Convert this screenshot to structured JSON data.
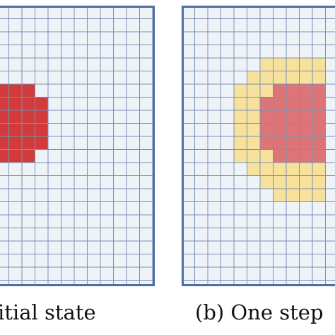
{
  "panels": [
    {
      "id": "a",
      "caption": "itial state",
      "colors": {
        "background": "#eef3f8",
        "grid": "#7a8fb4",
        "border": "#4d6fa3",
        "infected": "#d33a3a"
      },
      "layers": [
        {
          "name": "infected",
          "color": "#d33a3a",
          "cells": [
            [
              0,
              6
            ],
            [
              1,
              6
            ],
            [
              2,
              6
            ],
            [
              0,
              7
            ],
            [
              1,
              7
            ],
            [
              2,
              7
            ],
            [
              3,
              7
            ],
            [
              0,
              8
            ],
            [
              1,
              8
            ],
            [
              2,
              8
            ],
            [
              3,
              8
            ],
            [
              0,
              9
            ],
            [
              1,
              9
            ],
            [
              2,
              9
            ],
            [
              3,
              9
            ],
            [
              0,
              10
            ],
            [
              1,
              10
            ],
            [
              2,
              10
            ],
            [
              3,
              10
            ],
            [
              0,
              11
            ],
            [
              1,
              11
            ],
            [
              2,
              11
            ]
          ]
        }
      ]
    },
    {
      "id": "b",
      "caption": "(b) One step",
      "colors": {
        "background": "#eef3f8",
        "grid": "#7a8fb4",
        "border": "#4d6fa3"
      },
      "layers": [
        {
          "name": "spread",
          "color": "#f8e29b",
          "cells": [
            [
              6,
              4
            ],
            [
              7,
              4
            ],
            [
              8,
              4
            ],
            [
              9,
              4
            ],
            [
              10,
              4
            ],
            [
              5,
              5
            ],
            [
              6,
              5
            ],
            [
              7,
              5
            ],
            [
              8,
              5
            ],
            [
              9,
              5
            ],
            [
              10,
              5
            ],
            [
              4,
              6
            ],
            [
              5,
              6
            ],
            [
              6,
              6
            ],
            [
              7,
              6
            ],
            [
              8,
              6
            ],
            [
              9,
              6
            ],
            [
              10,
              6
            ],
            [
              4,
              7
            ],
            [
              5,
              7
            ],
            [
              6,
              7
            ],
            [
              7,
              7
            ],
            [
              8,
              7
            ],
            [
              9,
              7
            ],
            [
              10,
              7
            ],
            [
              4,
              8
            ],
            [
              5,
              8
            ],
            [
              6,
              8
            ],
            [
              7,
              8
            ],
            [
              8,
              8
            ],
            [
              9,
              8
            ],
            [
              10,
              8
            ],
            [
              4,
              9
            ],
            [
              5,
              9
            ],
            [
              6,
              9
            ],
            [
              7,
              9
            ],
            [
              8,
              9
            ],
            [
              9,
              9
            ],
            [
              10,
              9
            ],
            [
              4,
              10
            ],
            [
              5,
              10
            ],
            [
              6,
              10
            ],
            [
              7,
              10
            ],
            [
              8,
              10
            ],
            [
              9,
              10
            ],
            [
              10,
              10
            ],
            [
              4,
              11
            ],
            [
              5,
              11
            ],
            [
              6,
              11
            ],
            [
              7,
              11
            ],
            [
              8,
              11
            ],
            [
              9,
              11
            ],
            [
              10,
              11
            ],
            [
              5,
              12
            ],
            [
              6,
              12
            ],
            [
              7,
              12
            ],
            [
              8,
              12
            ],
            [
              9,
              12
            ],
            [
              10,
              12
            ],
            [
              6,
              13
            ],
            [
              7,
              13
            ],
            [
              8,
              13
            ],
            [
              9,
              13
            ],
            [
              10,
              13
            ],
            [
              7,
              14
            ],
            [
              8,
              14
            ],
            [
              9,
              14
            ],
            [
              10,
              14
            ]
          ]
        },
        {
          "name": "infected",
          "color": "#dd7578",
          "cells": [
            [
              7,
              6
            ],
            [
              8,
              6
            ],
            [
              9,
              6
            ],
            [
              10,
              6
            ],
            [
              6,
              7
            ],
            [
              7,
              7
            ],
            [
              8,
              7
            ],
            [
              9,
              7
            ],
            [
              10,
              7
            ],
            [
              6,
              8
            ],
            [
              7,
              8
            ],
            [
              8,
              8
            ],
            [
              9,
              8
            ],
            [
              10,
              8
            ],
            [
              6,
              9
            ],
            [
              7,
              9
            ],
            [
              8,
              9
            ],
            [
              9,
              9
            ],
            [
              10,
              9
            ],
            [
              6,
              10
            ],
            [
              7,
              10
            ],
            [
              8,
              10
            ],
            [
              9,
              10
            ],
            [
              10,
              10
            ],
            [
              7,
              11
            ],
            [
              8,
              11
            ],
            [
              9,
              11
            ],
            [
              10,
              11
            ]
          ]
        }
      ]
    }
  ]
}
